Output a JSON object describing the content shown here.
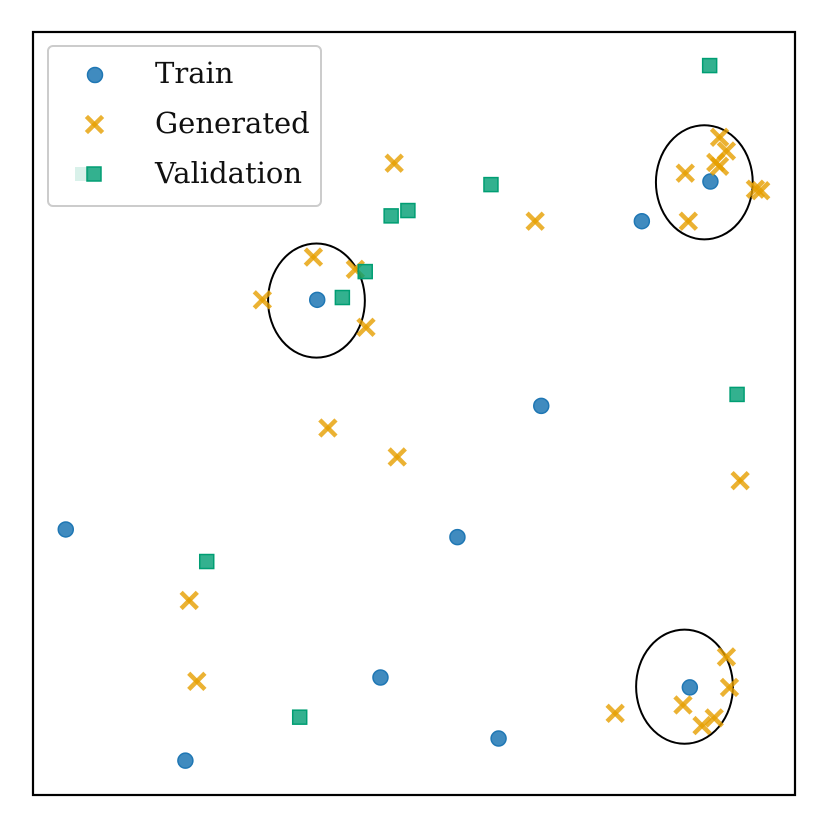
{
  "chart_data": {
    "type": "scatter",
    "title": "",
    "xlabel": "",
    "ylabel": "",
    "xlim": [
      0,
      1
    ],
    "ylim": [
      0,
      1
    ],
    "grid": false,
    "ticks": false,
    "legend": {
      "placement": "top-left",
      "entries": [
        {
          "label": "Train",
          "marker": "circle"
        },
        {
          "label": "Generated",
          "marker": "x"
        },
        {
          "label": "Validation",
          "marker": "square"
        }
      ]
    },
    "colors": {
      "train": "#1f77b4",
      "generated": "#e69f00",
      "validation": "#009e73"
    },
    "series": [
      {
        "name": "Train",
        "marker": "circle",
        "points": [
          {
            "x": 0.889,
            "y": 0.804
          },
          {
            "x": 0.799,
            "y": 0.752
          },
          {
            "x": 0.373,
            "y": 0.649
          },
          {
            "x": 0.667,
            "y": 0.51
          },
          {
            "x": 0.043,
            "y": 0.348
          },
          {
            "x": 0.557,
            "y": 0.338
          },
          {
            "x": 0.456,
            "y": 0.154
          },
          {
            "x": 0.611,
            "y": 0.074
          },
          {
            "x": 0.2,
            "y": 0.045
          },
          {
            "x": 0.862,
            "y": 0.141
          }
        ]
      },
      {
        "name": "Generated",
        "marker": "x",
        "points": [
          {
            "x": 0.901,
            "y": 0.862
          },
          {
            "x": 0.91,
            "y": 0.844
          },
          {
            "x": 0.896,
            "y": 0.829
          },
          {
            "x": 0.901,
            "y": 0.824
          },
          {
            "x": 0.856,
            "y": 0.815
          },
          {
            "x": 0.948,
            "y": 0.794
          },
          {
            "x": 0.955,
            "y": 0.792
          },
          {
            "x": 0.86,
            "y": 0.752
          },
          {
            "x": 0.474,
            "y": 0.828
          },
          {
            "x": 0.659,
            "y": 0.752
          },
          {
            "x": 0.368,
            "y": 0.705
          },
          {
            "x": 0.423,
            "y": 0.689
          },
          {
            "x": 0.301,
            "y": 0.649
          },
          {
            "x": 0.437,
            "y": 0.613
          },
          {
            "x": 0.387,
            "y": 0.481
          },
          {
            "x": 0.478,
            "y": 0.443
          },
          {
            "x": 0.928,
            "y": 0.412
          },
          {
            "x": 0.205,
            "y": 0.255
          },
          {
            "x": 0.215,
            "y": 0.149
          },
          {
            "x": 0.91,
            "y": 0.181
          },
          {
            "x": 0.914,
            "y": 0.141
          },
          {
            "x": 0.853,
            "y": 0.118
          },
          {
            "x": 0.894,
            "y": 0.101
          },
          {
            "x": 0.878,
            "y": 0.091
          },
          {
            "x": 0.764,
            "y": 0.107
          }
        ]
      },
      {
        "name": "Validation",
        "marker": "square",
        "points": [
          {
            "x": 0.888,
            "y": 0.956
          },
          {
            "x": 0.601,
            "y": 0.8
          },
          {
            "x": 0.492,
            "y": 0.766
          },
          {
            "x": 0.47,
            "y": 0.759
          },
          {
            "x": 0.436,
            "y": 0.686
          },
          {
            "x": 0.406,
            "y": 0.652
          },
          {
            "x": 0.924,
            "y": 0.525
          },
          {
            "x": 0.228,
            "y": 0.306
          },
          {
            "x": 0.35,
            "y": 0.102
          }
        ]
      }
    ],
    "circles": [
      {
        "center": [
          0.881,
          0.803
        ],
        "radius": 0.08
      },
      {
        "center": [
          0.372,
          0.648
        ],
        "radius": 0.08
      },
      {
        "center": [
          0.855,
          0.142
        ],
        "radius": 0.08
      }
    ]
  }
}
